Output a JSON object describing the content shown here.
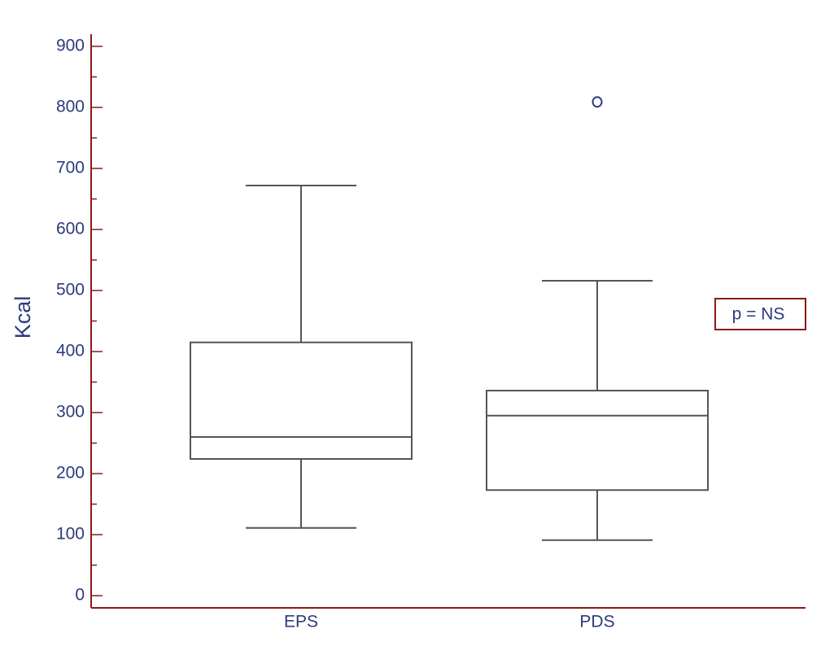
{
  "chart_data": {
    "type": "box",
    "y_label": "Kcal",
    "annotation": "p = NS",
    "categories": [
      "EPS",
      "PDS"
    ],
    "min": [
      111,
      91
    ],
    "q1": [
      224,
      173
    ],
    "median": [
      260,
      295
    ],
    "q3": [
      415,
      336
    ],
    "max": [
      672,
      516
    ],
    "outliers": [
      [],
      [
        809
      ]
    ],
    "ylim": [
      -20,
      920
    ],
    "yticks": [
      0,
      100,
      200,
      300,
      400,
      500,
      600,
      700,
      800,
      900
    ],
    "minor_yticks": [
      50,
      150,
      250,
      350,
      450,
      550,
      650,
      750,
      850
    ],
    "axis_color": "#8b1a1a",
    "box_color": "#555555",
    "text_color": "#2e3a7e"
  }
}
